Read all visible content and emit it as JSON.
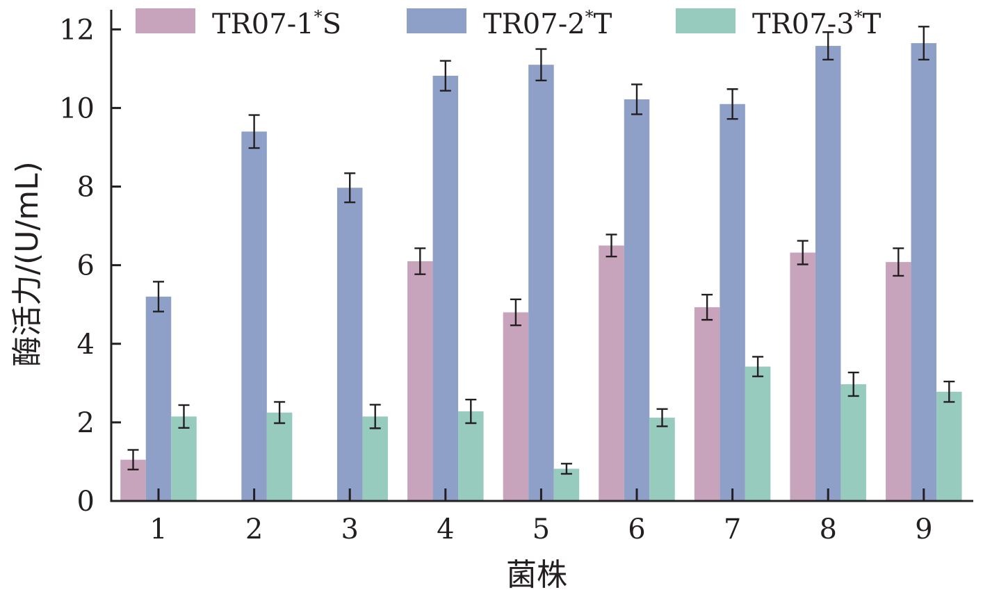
{
  "chart_data": {
    "type": "bar",
    "title": "",
    "xlabel": "菌株",
    "ylabel": "酶活力/(U/mL)",
    "ylim": [
      0,
      12.5
    ],
    "yticks": [
      0,
      2,
      4,
      6,
      8,
      10,
      12
    ],
    "categories": [
      "1",
      "2",
      "3",
      "4",
      "5",
      "6",
      "7",
      "8",
      "9"
    ],
    "legend_position": "top",
    "series": [
      {
        "name": "TR07-1*S",
        "label_main": "TR07-1",
        "label_sup": "*",
        "label_tail": "S",
        "color": "#c8a4bc",
        "values": [
          1.05,
          0,
          0,
          6.1,
          4.8,
          6.5,
          4.93,
          6.32,
          6.08
        ],
        "errors": [
          0.25,
          0,
          0,
          0.33,
          0.33,
          0.28,
          0.32,
          0.3,
          0.35
        ]
      },
      {
        "name": "TR07-2*T",
        "label_main": "TR07-2",
        "label_sup": "*",
        "label_tail": "T",
        "color": "#8fa0c8",
        "values": [
          5.2,
          9.4,
          7.97,
          10.82,
          11.1,
          10.22,
          10.1,
          11.58,
          11.65
        ],
        "errors": [
          0.38,
          0.42,
          0.37,
          0.38,
          0.4,
          0.38,
          0.38,
          0.35,
          0.42
        ]
      },
      {
        "name": "TR07-3*T",
        "label_main": "TR07-3",
        "label_sup": "*",
        "label_tail": "T",
        "color": "#96cbbd",
        "values": [
          2.15,
          2.25,
          2.15,
          2.28,
          0.82,
          2.12,
          3.42,
          2.97,
          2.78
        ],
        "errors": [
          0.29,
          0.27,
          0.3,
          0.3,
          0.13,
          0.22,
          0.25,
          0.3,
          0.26
        ]
      }
    ]
  }
}
